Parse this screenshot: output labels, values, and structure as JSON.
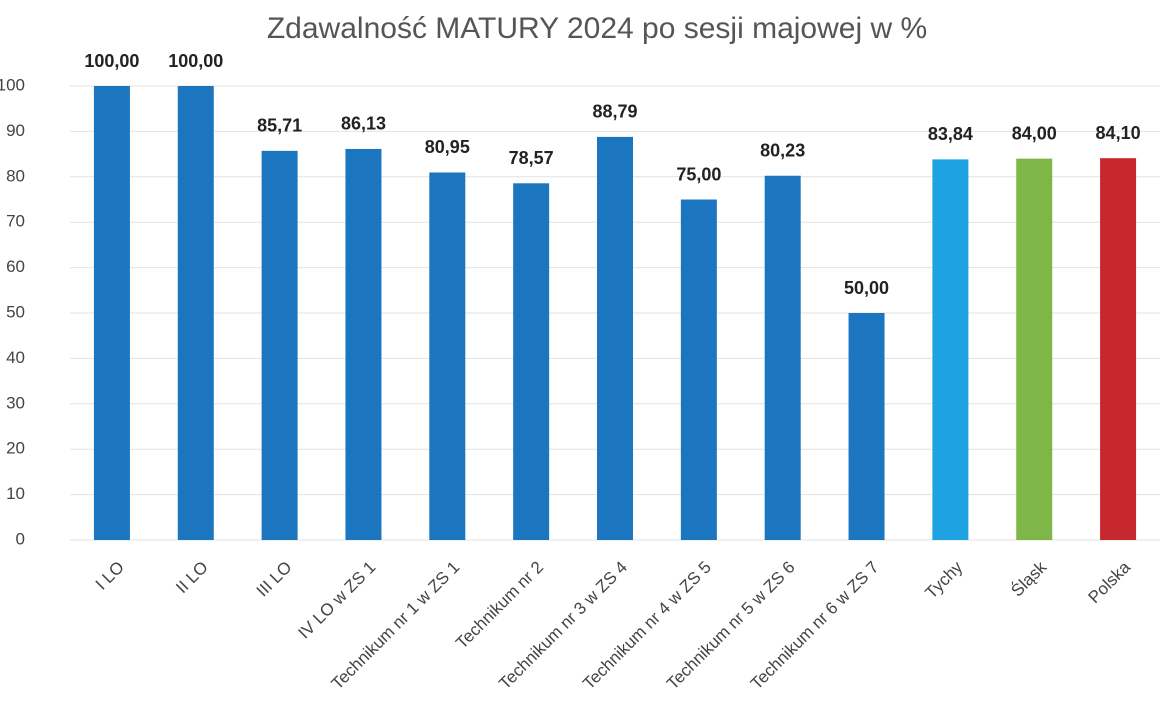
{
  "chart_data": {
    "type": "bar",
    "title": "Zdawalność MATURY 2024 po sesji majowej w %",
    "categories": [
      "I LO",
      "II LO",
      "III LO",
      "IV LO w ZS 1",
      "Technikum nr 1 w ZS 1",
      "Technikum nr 2",
      "Technikum nr 3 w ZS 4",
      "Technikum nr 4 w ZS 5",
      "Technikum nr 5 w ZS 6",
      "Technikum nr 6 w ZS 7",
      "Tychy",
      "Śląsk",
      "Polska"
    ],
    "values": [
      100,
      100,
      85.71,
      86.13,
      80.95,
      78.57,
      88.79,
      75,
      80.23,
      50,
      83.84,
      84,
      84.1
    ],
    "value_labels": [
      "100,00",
      "100,00",
      "85,71",
      "86,13",
      "80,95",
      "78,57",
      "88,79",
      "75,00",
      "80,23",
      "50,00",
      "83,84",
      "84,00",
      "84,10"
    ],
    "colors": [
      "#1b76bf",
      "#1b76bf",
      "#1b76bf",
      "#1b76bf",
      "#1b76bf",
      "#1b76bf",
      "#1b76bf",
      "#1b76bf",
      "#1b76bf",
      "#1b76bf",
      "#1fa2e2",
      "#7fb648",
      "#c6282e"
    ],
    "ylim": [
      0,
      100
    ],
    "yticks": [
      0,
      10,
      20,
      30,
      40,
      50,
      60,
      70,
      80,
      90,
      100
    ],
    "grid": true
  }
}
